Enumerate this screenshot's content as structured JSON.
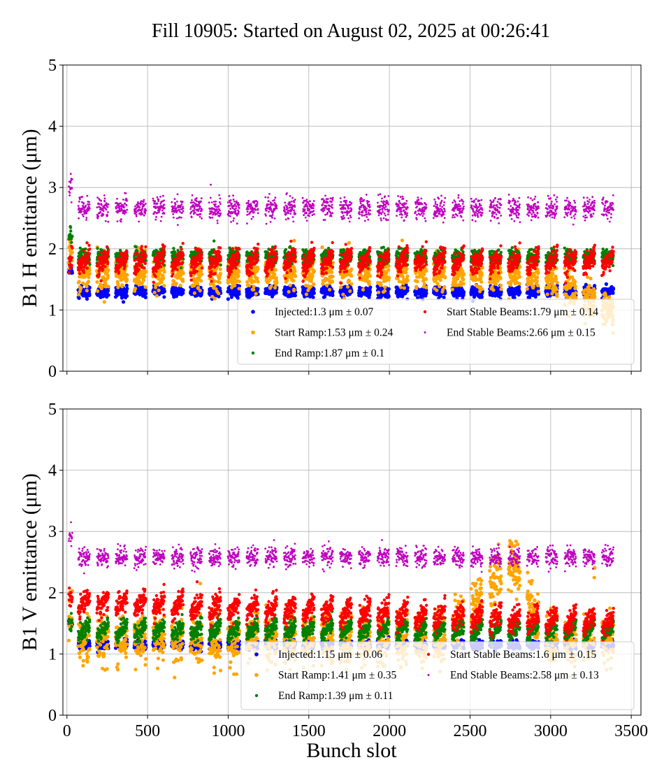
{
  "chart_data": [
    {
      "type": "scatter",
      "title": "Fill 10905: Started on August 02, 2025 at 00:26:41",
      "xlabel": "",
      "ylabel": "B1 H emittance (μm)",
      "xlim": [
        -25,
        3560
      ],
      "ylim": [
        0,
        5
      ],
      "xticks": [
        "0",
        "500",
        "1000",
        "1500",
        "2000",
        "2500",
        "3000",
        "3500"
      ],
      "yticks": [
        "0",
        "1",
        "2",
        "3",
        "4",
        "5"
      ],
      "grid": true,
      "legend_placement": "lower-right",
      "series": [
        {
          "name": "Injected",
          "legend": "Injected:1.3 μm ± 0.07",
          "mean": 1.3,
          "std": 0.07,
          "color": "#0000ff"
        },
        {
          "name": "Start Ramp",
          "legend": "Start Ramp:1.53 μm ± 0.24",
          "mean": 1.53,
          "std": 0.24,
          "color": "#ffa500"
        },
        {
          "name": "End Ramp",
          "legend": "End Ramp:1.87 μm ± 0.1",
          "mean": 1.87,
          "std": 0.1,
          "color": "#008000"
        },
        {
          "name": "Start Stable Beams",
          "legend": "Start Stable Beams:1.79 μm ± 0.14",
          "mean": 1.79,
          "std": 0.14,
          "color": "#ff0000"
        },
        {
          "name": "End Stable Beams",
          "legend": "End Stable Beams:2.66 μm ± 0.15",
          "mean": 2.66,
          "std": 0.15,
          "color": "#bf00bf"
        }
      ]
    },
    {
      "type": "scatter",
      "title": "",
      "xlabel": "Bunch slot",
      "ylabel": "B1 V emittance (μm)",
      "xlim": [
        -25,
        3560
      ],
      "ylim": [
        0,
        5
      ],
      "xticks": [
        "0",
        "500",
        "1000",
        "1500",
        "2000",
        "2500",
        "3000",
        "3500"
      ],
      "yticks": [
        "0",
        "1",
        "2",
        "3",
        "4",
        "5"
      ],
      "grid": true,
      "legend_placement": "lower-right",
      "series": [
        {
          "name": "Injected",
          "legend": "Injected:1.15 μm ± 0.06",
          "mean": 1.15,
          "std": 0.06,
          "color": "#0000ff"
        },
        {
          "name": "Start Ramp",
          "legend": "Start Ramp:1.41 μm ± 0.35",
          "mean": 1.41,
          "std": 0.35,
          "color": "#ffa500"
        },
        {
          "name": "End Ramp",
          "legend": "End Ramp:1.39 μm ± 0.11",
          "mean": 1.39,
          "std": 0.11,
          "color": "#008000"
        },
        {
          "name": "Start Stable Beams",
          "legend": "Start Stable Beams:1.6 μm ± 0.15",
          "mean": 1.6,
          "std": 0.15,
          "color": "#ff0000"
        },
        {
          "name": "End Stable Beams",
          "legend": "End Stable Beams:2.58 μm ± 0.13",
          "mean": 2.58,
          "std": 0.13,
          "color": "#bf00bf"
        }
      ]
    }
  ]
}
